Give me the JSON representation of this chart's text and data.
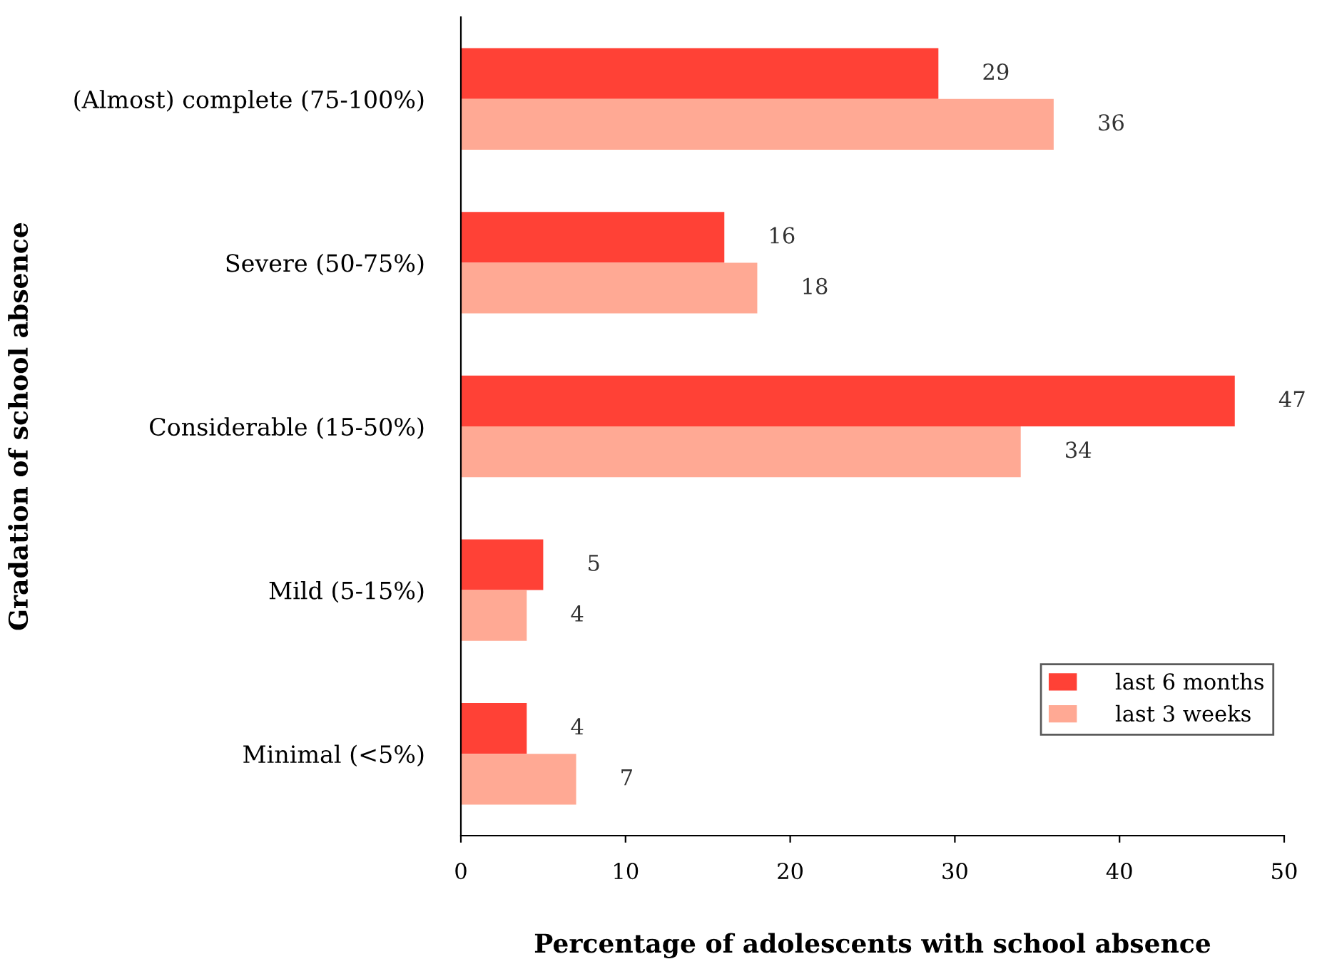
{
  "chart_data": {
    "type": "bar",
    "orientation": "horizontal",
    "xlabel": "Percentage of adolescents with school absence",
    "ylabel": "Gradation of school absence",
    "categories": [
      "(Almost) complete (75-100%)",
      "Severe (50-75%)",
      "Considerable (15-50%)",
      "Mild (5-15%)",
      "Minimal (<5%)"
    ],
    "series": [
      {
        "name": "last 6 months",
        "color": "#ff4136",
        "values": [
          29,
          16,
          47,
          5,
          4
        ]
      },
      {
        "name": "last 3 weeks",
        "color": "#ffa994",
        "values": [
          36,
          18,
          34,
          4,
          7
        ]
      }
    ],
    "xlim": [
      0,
      50
    ],
    "xticks": [
      0,
      10,
      20,
      30,
      40,
      50
    ],
    "data_labels": true,
    "legend": "bottom right",
    "grid": false
  }
}
